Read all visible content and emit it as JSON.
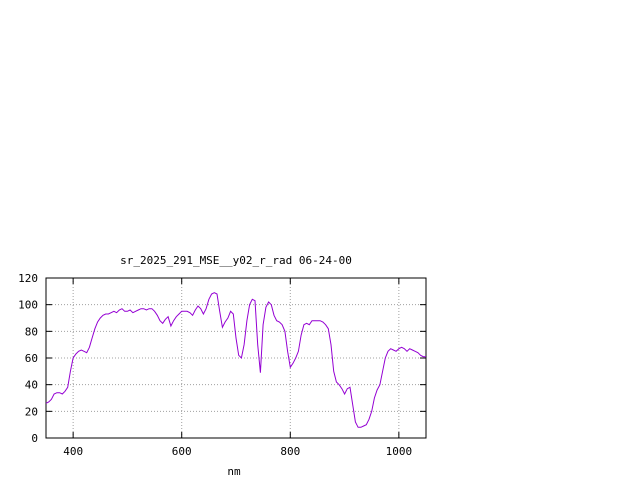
{
  "chart_data": {
    "type": "line",
    "title": "sr_2025_291_MSE__y02_r_rad 06-24-00",
    "xlabel": "nm",
    "ylabel": "",
    "xlim": [
      350,
      1050
    ],
    "ylim": [
      0,
      120
    ],
    "xticks": [
      400,
      600,
      800,
      1000
    ],
    "yticks": [
      0,
      20,
      40,
      60,
      80,
      100,
      120
    ],
    "grid": true,
    "line_color": "#9400d3",
    "series": [
      {
        "x": [
          350,
          355,
          360,
          365,
          370,
          375,
          380,
          385,
          390,
          395,
          400,
          405,
          410,
          415,
          420,
          425,
          430,
          435,
          440,
          445,
          450,
          455,
          460,
          465,
          470,
          475,
          480,
          485,
          490,
          495,
          500,
          505,
          510,
          515,
          520,
          525,
          530,
          535,
          540,
          545,
          550,
          555,
          560,
          565,
          570,
          575,
          580,
          585,
          590,
          595,
          600,
          605,
          610,
          615,
          620,
          625,
          630,
          635,
          640,
          645,
          650,
          655,
          660,
          665,
          670,
          675,
          680,
          685,
          690,
          695,
          700,
          705,
          710,
          715,
          720,
          725,
          730,
          735,
          740,
          745,
          750,
          755,
          760,
          765,
          770,
          775,
          780,
          785,
          790,
          795,
          800,
          805,
          810,
          815,
          820,
          825,
          830,
          835,
          840,
          845,
          850,
          855,
          860,
          865,
          870,
          875,
          880,
          885,
          890,
          895,
          900,
          905,
          910,
          915,
          920,
          925,
          930,
          935,
          940,
          945,
          950,
          955,
          960,
          965,
          970,
          975,
          980,
          985,
          990,
          995,
          1000,
          1005,
          1010,
          1015,
          1020,
          1025,
          1030,
          1035,
          1040,
          1045,
          1050
        ],
        "y": [
          26,
          27,
          29,
          33,
          34,
          34,
          33,
          35,
          38,
          50,
          60,
          63,
          65,
          66,
          65,
          64,
          68,
          75,
          82,
          87,
          90,
          92,
          93,
          93,
          94,
          95,
          94,
          96,
          97,
          95,
          95,
          96,
          94,
          95,
          96,
          97,
          97,
          96,
          97,
          97,
          95,
          92,
          88,
          86,
          89,
          91,
          84,
          88,
          91,
          93,
          95,
          95,
          95,
          94,
          92,
          96,
          99,
          97,
          93,
          97,
          104,
          108,
          109,
          108,
          95,
          83,
          87,
          90,
          95,
          93,
          75,
          62,
          60,
          70,
          88,
          100,
          104,
          103,
          70,
          49,
          85,
          98,
          102,
          100,
          92,
          88,
          87,
          85,
          80,
          65,
          53,
          56,
          60,
          65,
          77,
          85,
          86,
          85,
          88,
          88,
          88,
          88,
          87,
          85,
          82,
          70,
          50,
          42,
          40,
          37,
          33,
          37,
          38,
          25,
          12,
          8,
          8,
          9,
          10,
          14,
          20,
          30,
          36,
          40,
          50,
          60,
          65,
          67,
          66,
          65,
          67,
          68,
          67,
          65,
          67,
          66,
          65,
          64,
          62,
          61,
          61
        ]
      }
    ]
  }
}
